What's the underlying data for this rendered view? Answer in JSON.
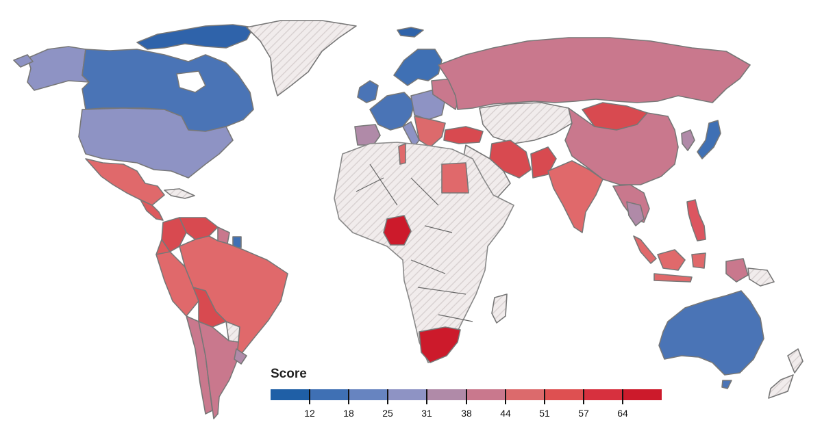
{
  "legend": {
    "title": "Score",
    "tick_labels": [
      "12",
      "18",
      "25",
      "31",
      "38",
      "44",
      "51",
      "57",
      "64"
    ],
    "ramp_colors": [
      "#1f5fa6",
      "#3f70b4",
      "#6784c0",
      "#8e93c4",
      "#b08aa8",
      "#c9788d",
      "#dc6a6c",
      "#de5051",
      "#d7303e",
      "#cc1a2b"
    ]
  },
  "colors": {
    "no_data_fill": "#f1ecec",
    "no_data_hatch": "#d9d2d2",
    "country_stroke": "#777777"
  },
  "map": {
    "regions": [
      {
        "name": "Alaska",
        "fill": "#8e93c4"
      },
      {
        "name": "Canada",
        "fill": "#4a74b6"
      },
      {
        "name": "Canadian Arctic Islands",
        "fill": "#2f63aa"
      },
      {
        "name": "Greenland",
        "fill": "no-data"
      },
      {
        "name": "United States",
        "fill": "#8e93c4"
      },
      {
        "name": "Mexico",
        "fill": "#e0696b"
      },
      {
        "name": "Central America",
        "fill": "#dd5a5e"
      },
      {
        "name": "Cuba",
        "fill": "no-data"
      },
      {
        "name": "Colombia",
        "fill": "#d84a50"
      },
      {
        "name": "Venezuela",
        "fill": "#d84a50"
      },
      {
        "name": "Guyana",
        "fill": "#c9788d"
      },
      {
        "name": "Suriname",
        "fill": "#3f70b4"
      },
      {
        "name": "Ecuador",
        "fill": "#de5a5c"
      },
      {
        "name": "Peru",
        "fill": "#e0696b"
      },
      {
        "name": "Brazil",
        "fill": "#e0696b"
      },
      {
        "name": "Bolivia",
        "fill": "#d84a50"
      },
      {
        "name": "Paraguay",
        "fill": "no-data"
      },
      {
        "name": "Chile",
        "fill": "#c9788d"
      },
      {
        "name": "Argentina",
        "fill": "#c9788d"
      },
      {
        "name": "Uruguay",
        "fill": "#b08aa8"
      },
      {
        "name": "Iceland",
        "fill": "#2f63aa"
      },
      {
        "name": "Ireland / UK",
        "fill": "#4a74b6"
      },
      {
        "name": "Scandinavia",
        "fill": "#3f70b4"
      },
      {
        "name": "Western Europe",
        "fill": "#4a74b6"
      },
      {
        "name": "Iberia",
        "fill": "#b08aa8"
      },
      {
        "name": "Central Europe",
        "fill": "#8e93c4"
      },
      {
        "name": "Eastern Europe",
        "fill": "#c9788d"
      },
      {
        "name": "Balkans",
        "fill": "#dc6a6c"
      },
      {
        "name": "Russia",
        "fill": "#c9788d"
      },
      {
        "name": "Turkey",
        "fill": "#c9788d"
      },
      {
        "name": "Kazakhstan / Central Asia",
        "fill": "no-data"
      },
      {
        "name": "Mongolia",
        "fill": "#d84a50"
      },
      {
        "name": "China",
        "fill": "#c9788d"
      },
      {
        "name": "Korea",
        "fill": "#b08aa8"
      },
      {
        "name": "Japan",
        "fill": "#3f70b4"
      },
      {
        "name": "Iran",
        "fill": "#d84a50"
      },
      {
        "name": "Middle East",
        "fill": "no-data"
      },
      {
        "name": "Pakistan",
        "fill": "#d84a50"
      },
      {
        "name": "India",
        "fill": "#e0696b"
      },
      {
        "name": "Southeast Asia",
        "fill": "#c9788d"
      },
      {
        "name": "Thailand",
        "fill": "#b08aa8"
      },
      {
        "name": "Indonesia",
        "fill": "#e0696b"
      },
      {
        "name": "Philippines",
        "fill": "#dc5560"
      },
      {
        "name": "Africa",
        "fill": "no-data"
      },
      {
        "name": "Tunisia",
        "fill": "#e0696b"
      },
      {
        "name": "Egypt",
        "fill": "#e0696b"
      },
      {
        "name": "Nigeria",
        "fill": "#cc1a2b"
      },
      {
        "name": "South Africa",
        "fill": "#cc1a2b"
      },
      {
        "name": "Madagascar",
        "fill": "no-data"
      },
      {
        "name": "Australia",
        "fill": "#4a74b6"
      },
      {
        "name": "New Zealand",
        "fill": "no-data"
      },
      {
        "name": "Papua New Guinea",
        "fill": "#c9788d"
      }
    ]
  }
}
